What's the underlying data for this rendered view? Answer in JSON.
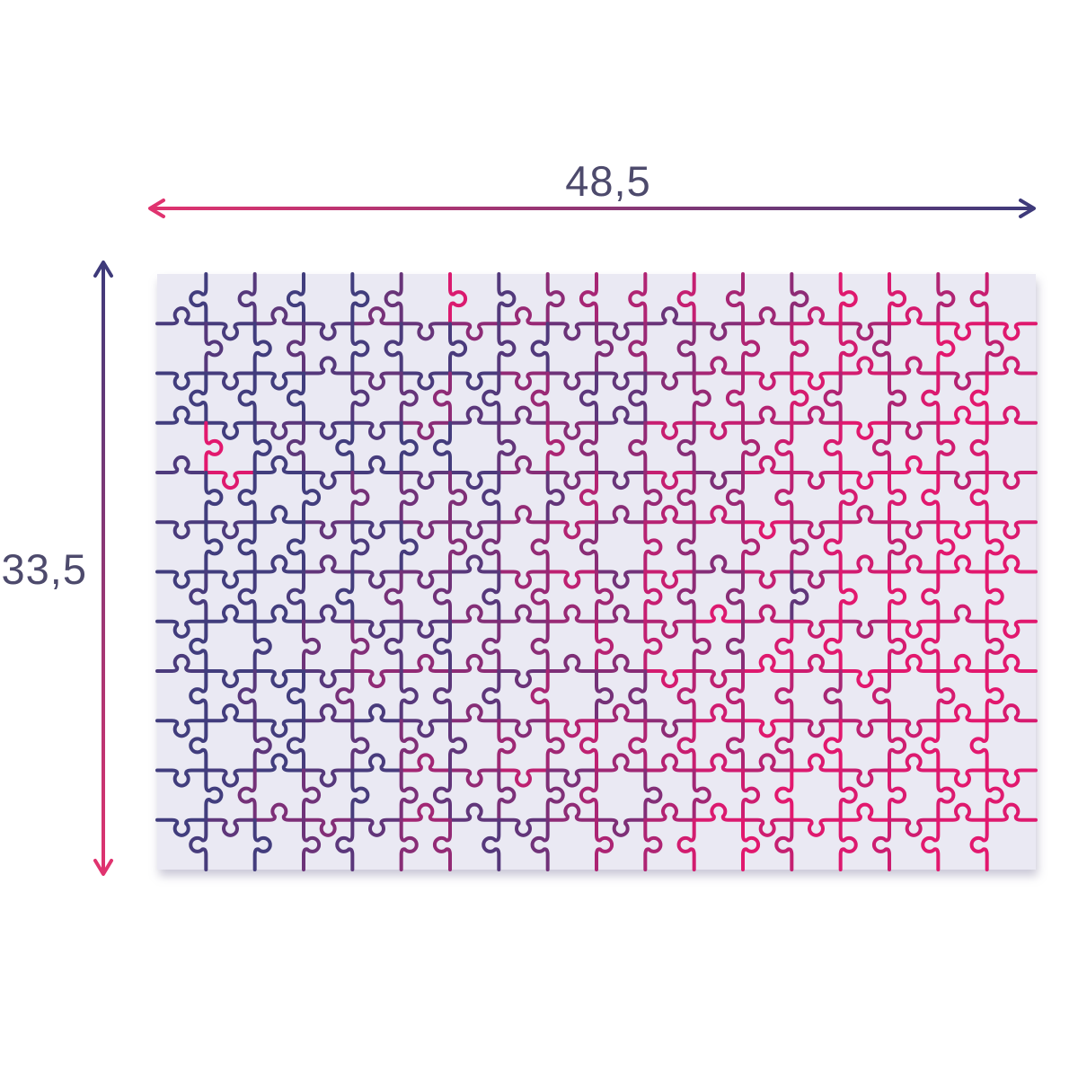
{
  "page": {
    "background_color": "#ffffff"
  },
  "diagram": {
    "width_label": "48,5",
    "height_label": "33,5",
    "label_color": "#4D4A6C",
    "arrow_pink": "#E0336F",
    "arrow_navy": "#3E3A7A"
  },
  "puzzle": {
    "columns": 18,
    "rows": 12,
    "background_color": "#EAE9F3",
    "line_color_start": "#413D7D",
    "line_color_end": "#E2186E",
    "stroke_width": 4
  }
}
